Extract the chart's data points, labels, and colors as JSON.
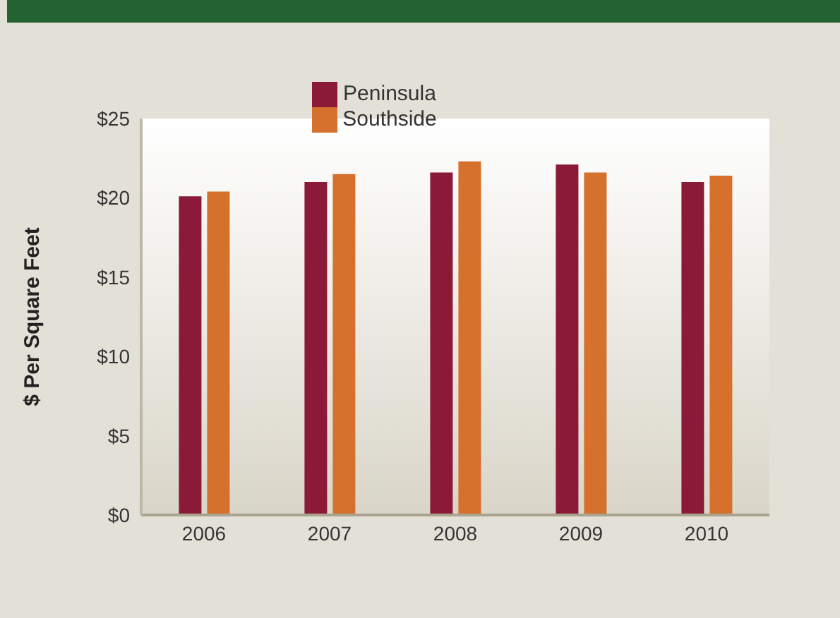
{
  "chart_data": {
    "type": "bar",
    "ylabel": "$ Per Square Feet",
    "categories": [
      "2006",
      "2007",
      "2008",
      "2009",
      "2010"
    ],
    "series": [
      {
        "name": "Peninsula",
        "color": "#8b1a38",
        "values": [
          20.1,
          21.0,
          21.6,
          22.1,
          21.0
        ]
      },
      {
        "name": "Southside",
        "color": "#d6702d",
        "values": [
          20.4,
          21.5,
          22.3,
          21.6,
          21.4
        ]
      }
    ],
    "ylim": [
      0,
      25
    ],
    "yticks": [
      {
        "value": 0,
        "label": "$0"
      },
      {
        "value": 5,
        "label": "$5"
      },
      {
        "value": 10,
        "label": "$10"
      },
      {
        "value": 15,
        "label": "$15"
      },
      {
        "value": 20,
        "label": "$20"
      },
      {
        "value": 25,
        "label": "$25"
      }
    ],
    "grid": false,
    "legend": "top"
  }
}
